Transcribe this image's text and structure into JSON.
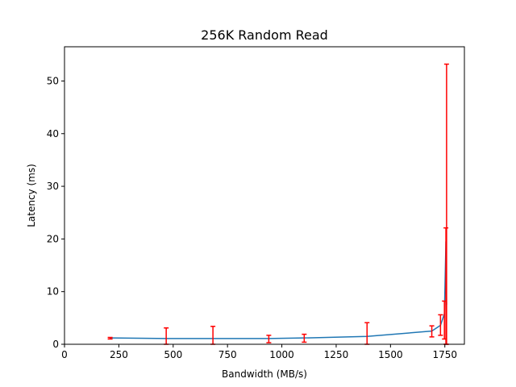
{
  "chart_data": {
    "type": "line",
    "title": "256K  Random Read",
    "xlabel": "Bandwidth (MB/s)",
    "ylabel": "Latency (ms)",
    "xlim": [
      0,
      1840
    ],
    "ylim": [
      0,
      56.5
    ],
    "xticks": [
      0,
      250,
      500,
      750,
      1000,
      1250,
      1500,
      1750
    ],
    "yticks": [
      0,
      10,
      20,
      30,
      40,
      50
    ],
    "grid": false,
    "legend": "none",
    "series": [
      {
        "line_color": "#1f77b4",
        "errorbar_color": "#ff0000",
        "points": [
          {
            "x": 210,
            "y": 1.2,
            "err_low": 1.0,
            "err_high": 1.3
          },
          {
            "x": 468,
            "y": 1.1,
            "err_low": 0.0,
            "err_high": 3.1
          },
          {
            "x": 683,
            "y": 1.1,
            "err_low": 0.0,
            "err_high": 3.4
          },
          {
            "x": 940,
            "y": 1.1,
            "err_low": 0.3,
            "err_high": 1.7
          },
          {
            "x": 1103,
            "y": 1.2,
            "err_low": 0.4,
            "err_high": 1.9
          },
          {
            "x": 1392,
            "y": 1.5,
            "err_low": 0.0,
            "err_high": 4.1
          },
          {
            "x": 1690,
            "y": 2.5,
            "err_low": 1.4,
            "err_high": 3.5
          },
          {
            "x": 1730,
            "y": 3.6,
            "err_low": 1.7,
            "err_high": 5.6
          },
          {
            "x": 1748,
            "y": 5.8,
            "err_low": 1.0,
            "err_high": 8.2
          },
          {
            "x": 1755,
            "y": 19.5,
            "err_low": 0.0,
            "err_high": 22.1
          },
          {
            "x": 1758,
            "y": 7.5,
            "err_low": 0.0,
            "err_high": 53.2
          }
        ]
      }
    ]
  }
}
